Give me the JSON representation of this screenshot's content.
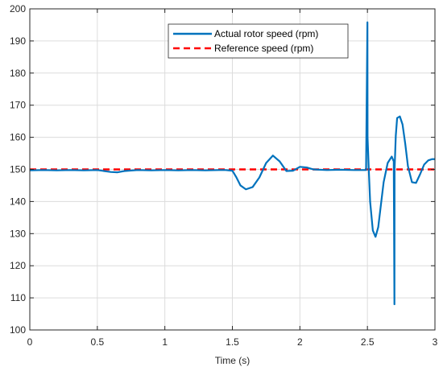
{
  "chart_data": {
    "type": "line",
    "title": "",
    "xlabel": "Time (s)",
    "ylabel": "",
    "xlim": [
      0,
      3
    ],
    "ylim": [
      100,
      200
    ],
    "x_ticks": [
      "0",
      "0.5",
      "1",
      "1.5",
      "2",
      "2.5",
      "3"
    ],
    "y_ticks": [
      "100",
      "110",
      "120",
      "130",
      "140",
      "150",
      "160",
      "170",
      "180",
      "190",
      "200"
    ],
    "grid": true,
    "legend_position": "top-center",
    "series": [
      {
        "name": "Actual rotor speed (rpm)",
        "color": "#0072BD",
        "style": "solid",
        "x": [
          0,
          0.1,
          0.2,
          0.3,
          0.4,
          0.5,
          0.55,
          0.6,
          0.65,
          0.7,
          0.8,
          0.9,
          1.0,
          1.1,
          1.2,
          1.3,
          1.4,
          1.45,
          1.5,
          1.53,
          1.56,
          1.6,
          1.65,
          1.7,
          1.75,
          1.8,
          1.85,
          1.9,
          1.95,
          2.0,
          2.05,
          2.1,
          2.2,
          2.3,
          2.4,
          2.49,
          2.5,
          2.501,
          2.51,
          2.52,
          2.54,
          2.56,
          2.58,
          2.6,
          2.62,
          2.65,
          2.68,
          2.695,
          2.7,
          2.701,
          2.71,
          2.72,
          2.74,
          2.76,
          2.78,
          2.8,
          2.83,
          2.86,
          2.89,
          2.92,
          2.95,
          2.98,
          3.0
        ],
        "values": [
          149.7,
          149.8,
          149.7,
          149.8,
          149.7,
          149.8,
          149.5,
          149.2,
          149.1,
          149.5,
          149.8,
          149.7,
          149.8,
          149.7,
          149.8,
          149.7,
          149.8,
          149.8,
          149.6,
          147.5,
          145.0,
          143.8,
          144.5,
          147.5,
          152.0,
          154.3,
          152.5,
          149.5,
          149.6,
          150.8,
          150.6,
          150.0,
          149.8,
          149.9,
          149.8,
          149.8,
          195.8,
          160.0,
          150.0,
          140.0,
          131.0,
          129.0,
          132.0,
          139.0,
          146.0,
          152.0,
          154.0,
          152.5,
          108.0,
          150.0,
          160.5,
          166.0,
          166.5,
          164.0,
          158.0,
          151.0,
          146.0,
          145.8,
          148.5,
          151.5,
          152.8,
          153.2,
          153.2
        ]
      },
      {
        "name": "Reference speed (rpm)",
        "color": "#FF0000",
        "style": "dashed",
        "x": [
          0,
          3
        ],
        "values": [
          150,
          150
        ]
      }
    ]
  }
}
